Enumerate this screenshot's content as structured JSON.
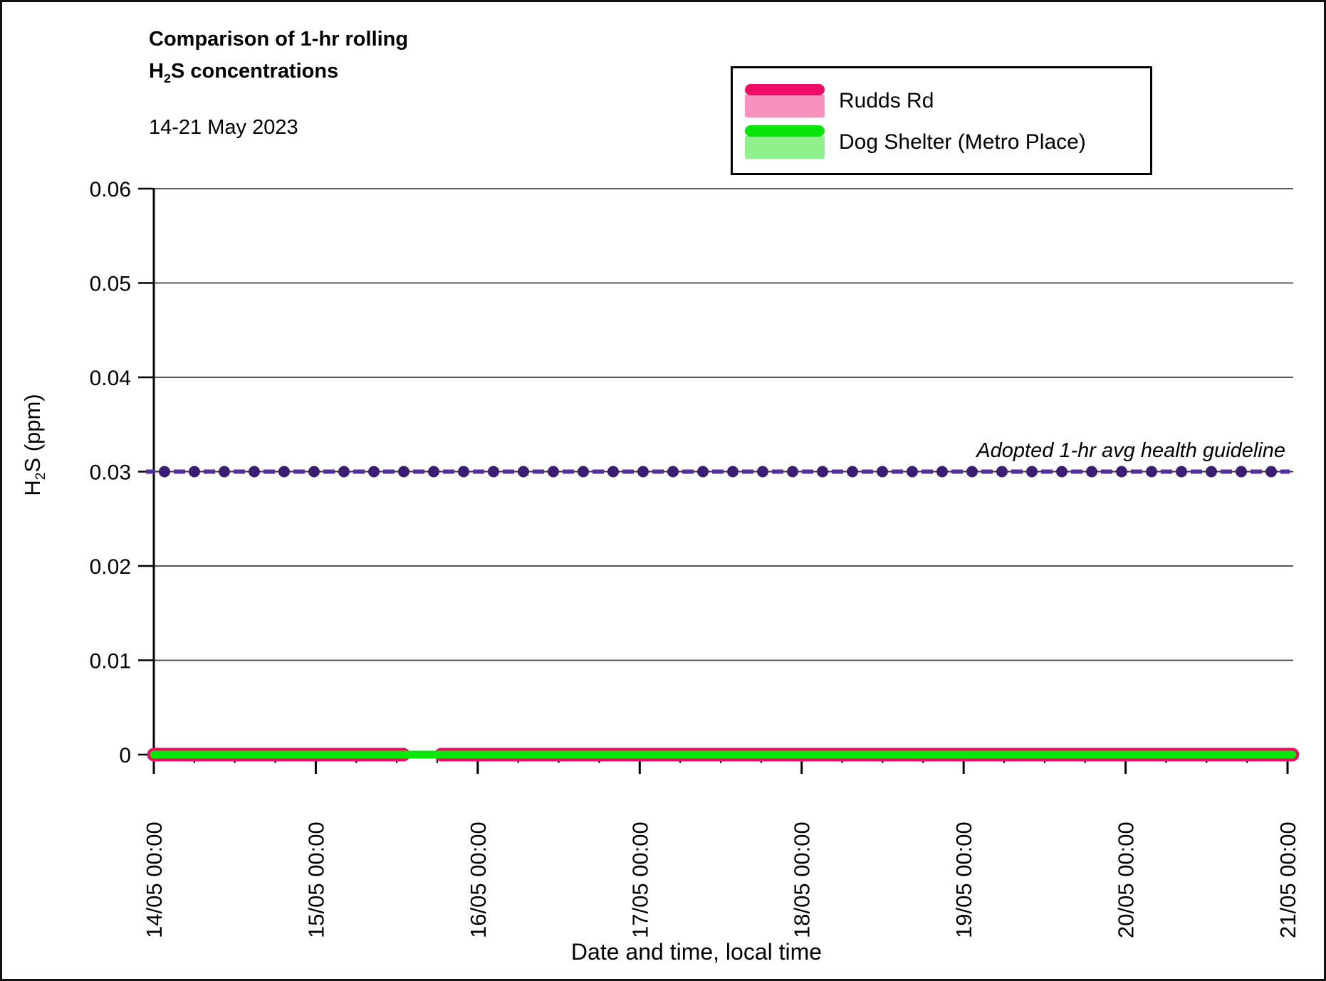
{
  "header": {
    "title_line1": "Comparison of 1-hr rolling",
    "title_h": "H",
    "title_sub": "2",
    "title_rest": "S concentrations",
    "subtitle": "14-21 May 2023"
  },
  "legend": {
    "items": [
      {
        "label": "Rudds Rd"
      },
      {
        "label": "Dog Shelter (Metro Place)"
      }
    ]
  },
  "axes": {
    "ylabel_h": "H",
    "ylabel_sub": "2",
    "ylabel_rest": "S (ppm)",
    "xlabel": "Date and time, local time"
  },
  "annotation": {
    "text": "Adopted 1-hr avg health guideline"
  },
  "chart_data": {
    "type": "line",
    "title": "Comparison of 1-hr rolling H₂S concentrations",
    "subtitle": "14-21 May 2023",
    "xlabel": "Date and time, local time",
    "ylabel": "H₂S (ppm)",
    "ylim": [
      0,
      0.06
    ],
    "yticks": [
      0,
      0.01,
      0.02,
      0.03,
      0.04,
      0.05,
      0.06
    ],
    "ytick_labels": [
      "0",
      "0.01",
      "0.02",
      "0.03",
      "0.04",
      "0.05",
      "0.06"
    ],
    "x_days_range": [
      0,
      7
    ],
    "xtick_labels": [
      "14/05 00:00",
      "15/05 00:00",
      "16/05 00:00",
      "17/05 00:00",
      "18/05 00:00",
      "19/05 00:00",
      "20/05 00:00",
      "21/05 00:00"
    ],
    "minor_tick_hours": 6,
    "grid": "horizontal",
    "legend_position": "top-right",
    "series": [
      {
        "name": "Rudds Rd",
        "color": "#ef0b64",
        "shade": "#f892bc",
        "value_ppm": 0.0,
        "segments_days": [
          [
            0,
            1.541
          ],
          [
            1.774,
            7.03
          ]
        ]
      },
      {
        "name": "Dog Shelter (Metro Place)",
        "color": "#07e607",
        "shade": "#8ef18c",
        "value_ppm": 0.0,
        "segments_days": [
          [
            0,
            7.03
          ]
        ]
      }
    ],
    "guideline": {
      "label": "Adopted 1-hr avg health guideline",
      "value_ppm": 0.03,
      "dot_color": "#3b1d73",
      "dash_color": "#53309a",
      "line_color": "#2e2e2e"
    }
  }
}
